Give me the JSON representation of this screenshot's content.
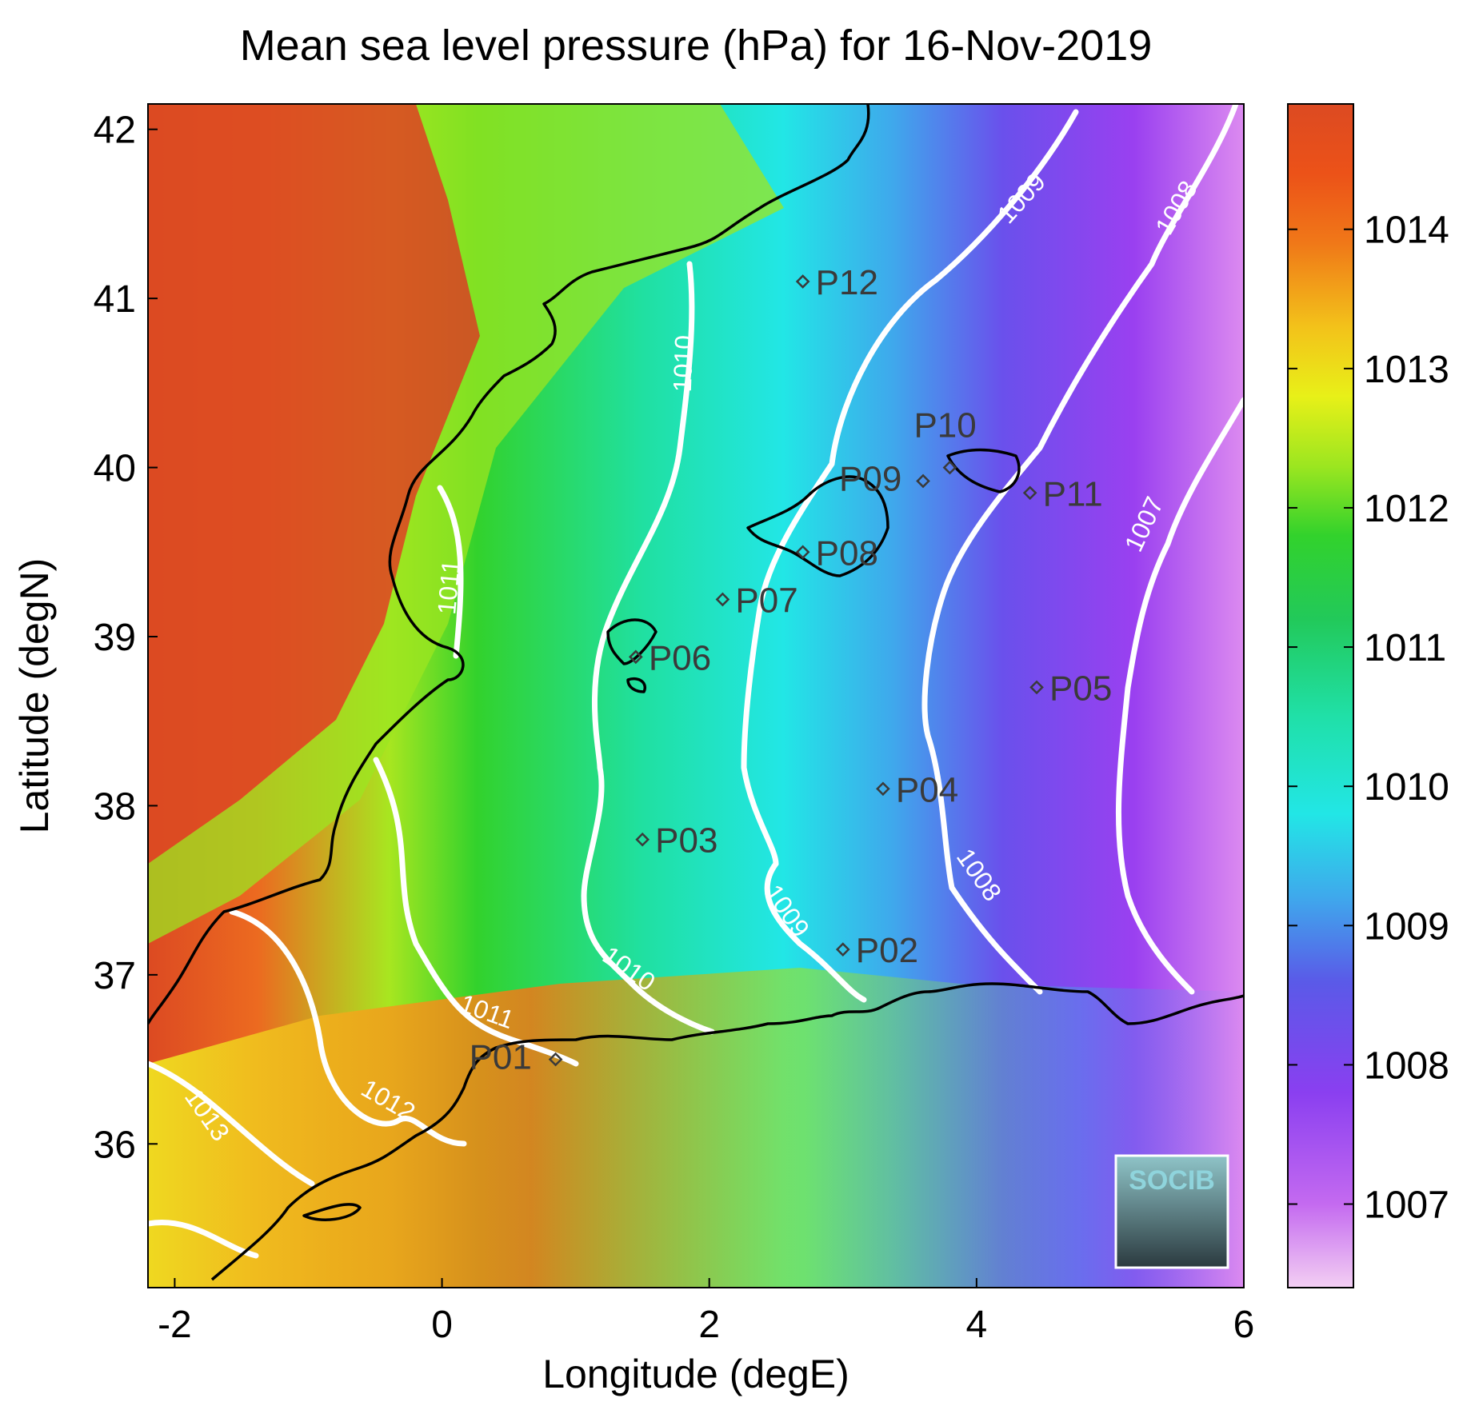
{
  "title": "Mean sea level pressure (hPa) for 16-Nov-2019",
  "axes": {
    "xlabel": "Longitude (degE)",
    "ylabel": "Latitude (degN)",
    "xlim": [
      -2.2,
      6.0
    ],
    "ylim": [
      35.15,
      42.15
    ],
    "xticks": [
      -2,
      0,
      2,
      4,
      6
    ],
    "yticks": [
      36,
      37,
      38,
      39,
      40,
      41,
      42
    ]
  },
  "colorbar": {
    "range": [
      1006.4,
      1014.9
    ],
    "ticks": [
      1007,
      1008,
      1009,
      1010,
      1011,
      1012,
      1013,
      1014
    ],
    "colormap": [
      {
        "value": 1006.4,
        "color": "#f3cff3"
      },
      {
        "value": 1007.0,
        "color": "#c46af0"
      },
      {
        "value": 1007.8,
        "color": "#8a3ff0"
      },
      {
        "value": 1008.6,
        "color": "#5a5ae8"
      },
      {
        "value": 1009.2,
        "color": "#3fa8ec"
      },
      {
        "value": 1009.8,
        "color": "#22e6e6"
      },
      {
        "value": 1010.5,
        "color": "#20e0a8"
      },
      {
        "value": 1011.2,
        "color": "#22c95a"
      },
      {
        "value": 1011.8,
        "color": "#32d22c"
      },
      {
        "value": 1012.3,
        "color": "#9ce620"
      },
      {
        "value": 1012.8,
        "color": "#e8f018"
      },
      {
        "value": 1013.3,
        "color": "#f3c21a"
      },
      {
        "value": 1013.9,
        "color": "#f07818"
      },
      {
        "value": 1014.4,
        "color": "#ec5218"
      },
      {
        "value": 1014.9,
        "color": "#dc4a22"
      }
    ]
  },
  "contours": [
    {
      "level": "1013",
      "label": "1013"
    },
    {
      "level": "1012",
      "label": "1012"
    },
    {
      "level": "1011",
      "labels": [
        "1011",
        "1011"
      ]
    },
    {
      "level": "1010",
      "labels": [
        "1010",
        "1010"
      ]
    },
    {
      "level": "1009",
      "labels": [
        "1009",
        "1009"
      ]
    },
    {
      "level": "1008",
      "labels": [
        "1008",
        "1008"
      ]
    },
    {
      "level": "1007",
      "label": "1007"
    }
  ],
  "sites": [
    {
      "name": "P01",
      "lon": 0.85,
      "lat": 36.5
    },
    {
      "name": "P02",
      "lon": 3.0,
      "lat": 37.15
    },
    {
      "name": "P03",
      "lon": 1.5,
      "lat": 37.8
    },
    {
      "name": "P04",
      "lon": 3.3,
      "lat": 38.1
    },
    {
      "name": "P05",
      "lon": 4.45,
      "lat": 38.7
    },
    {
      "name": "P06",
      "lon": 1.45,
      "lat": 38.88
    },
    {
      "name": "P07",
      "lon": 2.1,
      "lat": 39.22
    },
    {
      "name": "P08",
      "lon": 2.7,
      "lat": 39.5
    },
    {
      "name": "P09",
      "lon": 3.6,
      "lat": 39.92
    },
    {
      "name": "P10",
      "lon": 3.8,
      "lat": 40.0
    },
    {
      "name": "P11",
      "lon": 4.4,
      "lat": 39.85
    },
    {
      "name": "P12",
      "lon": 2.7,
      "lat": 41.1
    }
  ],
  "logo": {
    "text": "SOCIB"
  }
}
